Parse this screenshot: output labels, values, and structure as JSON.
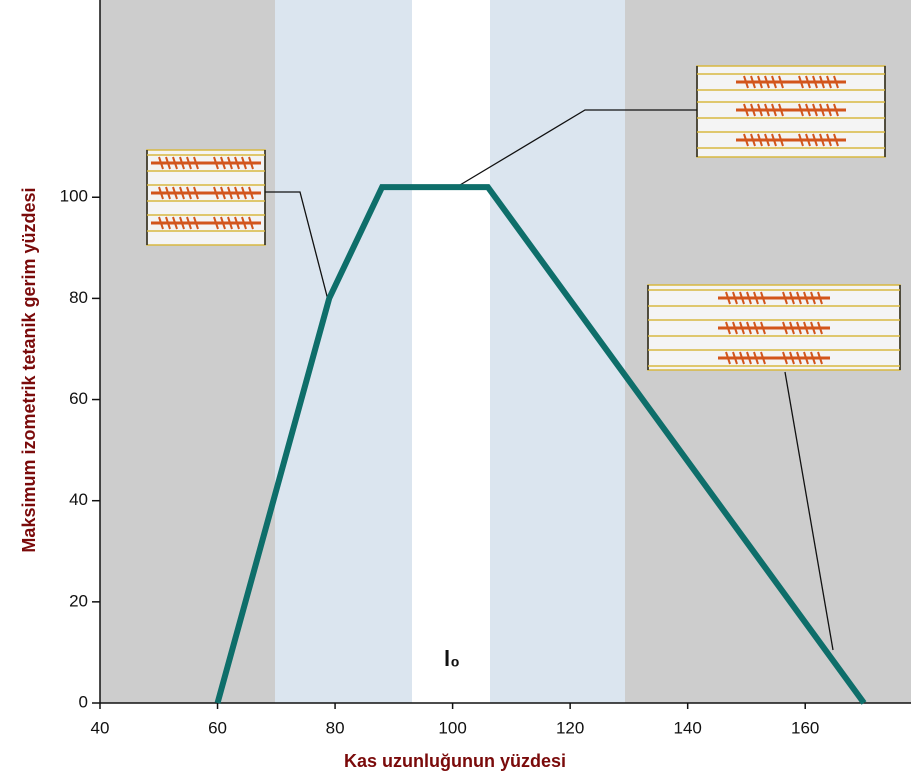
{
  "chart_data": {
    "type": "line",
    "x_label": "Kas uzunluğunun yüzdesi",
    "y_label": "Maksimum izometrik tetanik gerim yüzdesi",
    "annotation": "l₀",
    "x": [
      60,
      79,
      88,
      106,
      170
    ],
    "series": [
      {
        "color": "#0e6e6a",
        "values": [
          0,
          80,
          102,
          102,
          0
        ]
      }
    ],
    "xlim": [
      40,
      178
    ],
    "ylim": [
      0,
      139
    ],
    "xticks": [
      40,
      60,
      80,
      100,
      120,
      140,
      160
    ],
    "yticks": [
      0,
      20,
      40,
      60,
      80,
      100
    ]
  }
}
